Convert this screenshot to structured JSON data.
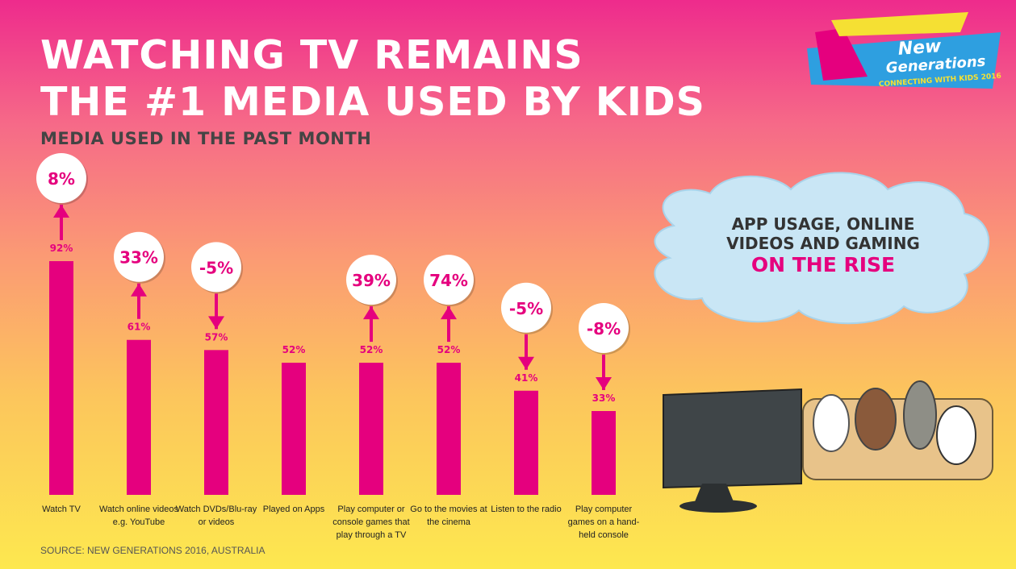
{
  "chart_data": {
    "type": "bar",
    "title": [
      "WATCHING TV REMAINS",
      "THE #1 MEDIA USED BY KIDS"
    ],
    "subtitle": "MEDIA USED IN THE PAST MONTH",
    "categories": [
      "Watch TV",
      "Watch online videos e.g. YouTube",
      "Watch DVDs/Blu-ray or videos",
      "Played on Apps",
      "Play computer or console games that play through a TV",
      "Go to the movies at the cinema",
      "Listen to the radio",
      "Play computer games on a hand-held console"
    ],
    "values": [
      92,
      61,
      57,
      52,
      52,
      52,
      41,
      33
    ],
    "value_labels": [
      "92%",
      "61%",
      "57%",
      "52%",
      "52%",
      "52%",
      "41%",
      "33%"
    ],
    "color": "#e5007e",
    "changes": {
      "values": [
        8,
        33,
        -5,
        null,
        39,
        74,
        -5,
        -8
      ],
      "value_labels": [
        "8%",
        "33%",
        "-5%",
        null,
        "39%",
        "74%",
        "-5%",
        "-8%"
      ]
    },
    "annotation": [
      "APP USAGE, ONLINE",
      "VIDEOS AND GAMING",
      "ON THE RISE"
    ],
    "logo": [
      "New",
      "Generations",
      "CONNECTING WITH KIDS 2016"
    ],
    "source": "SOURCE: NEW GENERATIONS 2016, AUSTRALIA"
  }
}
